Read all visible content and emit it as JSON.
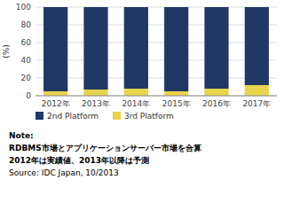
{
  "chart_data": {
    "type": "bar",
    "stacked": true,
    "categories": [
      "2012年",
      "2013年",
      "2014年",
      "2015年",
      "2016年",
      "2017年"
    ],
    "series": [
      {
        "name": "3rd Platform",
        "color": "#e8d44d",
        "values": [
          5,
          7,
          8,
          5,
          8,
          12
        ]
      },
      {
        "name": "2nd Platform",
        "color": "#1f3864",
        "values": [
          95,
          93,
          92,
          95,
          92,
          88
        ]
      }
    ],
    "y_label": "(%)",
    "ylim": [
      0,
      100
    ],
    "yticks": [
      0,
      20,
      40,
      60,
      80,
      100
    ],
    "grid": true,
    "legend": "bottom",
    "annotations": [
      "Note:",
      "RDBMS市場とアプリケーションサーバー市場を合算",
      "2012年は実績値、2013年以降は予測",
      "Source: IDC Japan, 10/2013"
    ]
  }
}
